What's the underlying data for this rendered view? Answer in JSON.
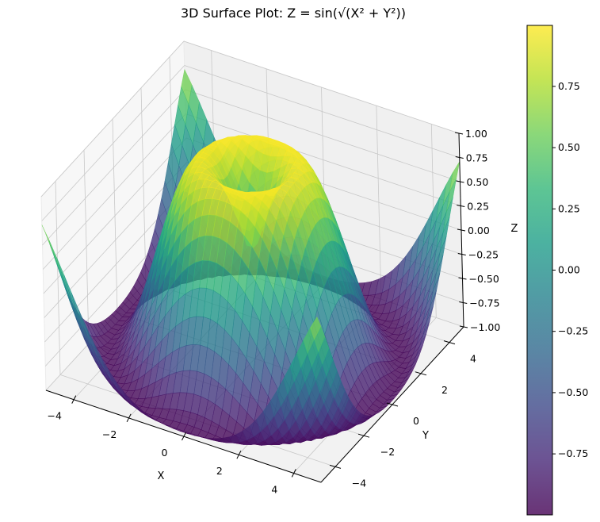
{
  "chart_data": {
    "type": "surface3d",
    "title": "3D Surface Plot: Z = sin(√(X² + Y²))",
    "function": "Z = sin(sqrt(X^2 + Y^2))",
    "xlabel": "X",
    "ylabel": "Y",
    "zlabel": "Z",
    "xlim": [
      -5,
      5
    ],
    "ylim": [
      -5,
      5
    ],
    "zlim": [
      -1,
      1
    ],
    "x_ticks": [
      "−4",
      "−2",
      "0",
      "2",
      "4"
    ],
    "x_tick_values": [
      -4,
      -2,
      0,
      2,
      4
    ],
    "y_ticks": [
      "−4",
      "−2",
      "0",
      "2",
      "4"
    ],
    "y_tick_values": [
      -4,
      -2,
      0,
      2,
      4
    ],
    "z_ticks": [
      "−1.00",
      "−0.75",
      "−0.50",
      "−0.25",
      "0.00",
      "0.25",
      "0.50",
      "0.75",
      "1.00"
    ],
    "z_tick_values": [
      -1,
      -0.75,
      -0.5,
      -0.25,
      0,
      0.25,
      0.5,
      0.75,
      1
    ],
    "grid": true,
    "colormap": "viridis",
    "alpha": 0.8,
    "grid_resolution": 40,
    "colorbar": {
      "ticks": [
        "−0.75",
        "−0.50",
        "−0.25",
        "0.00",
        "0.25",
        "0.50",
        "0.75"
      ],
      "tick_values": [
        -0.75,
        -0.5,
        -0.25,
        0,
        0.25,
        0.5,
        0.75
      ],
      "range": [
        -0.999,
        0.999
      ],
      "position": "right"
    }
  },
  "colors": {
    "pane": "#f2f2f2",
    "grid": "#c8c8c8",
    "axis": "#000000",
    "viridis": [
      "#440154",
      "#482878",
      "#3e4989",
      "#31688e",
      "#26828e",
      "#1f9e89",
      "#35b779",
      "#6ece58",
      "#b5de2b",
      "#fde725"
    ]
  }
}
